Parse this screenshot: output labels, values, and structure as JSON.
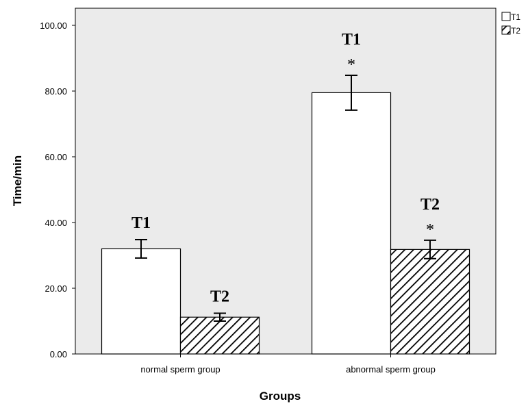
{
  "chart_data": {
    "type": "bar",
    "xlabel": "Groups",
    "ylabel": "Time/min",
    "ylim": [
      0,
      100
    ],
    "yticks": [
      "0.00",
      "20.00",
      "40.00",
      "60.00",
      "80.00",
      "100.00"
    ],
    "categories": [
      "normal sperm group",
      "abnormal sperm group"
    ],
    "series": [
      {
        "name": "T1",
        "values": [
          32.0,
          79.5
        ],
        "errors": [
          2.8,
          5.3
        ],
        "fill": "#ffffff",
        "pattern": "none"
      },
      {
        "name": "T2",
        "values": [
          11.2,
          31.8
        ],
        "errors": [
          1.2,
          2.8
        ],
        "fill": "#ffffff",
        "pattern": "diagonal-hatch"
      }
    ],
    "bar_labels": [
      {
        "series": 0,
        "category": 0,
        "text": "T1",
        "mark": ""
      },
      {
        "series": 1,
        "category": 0,
        "text": "T2",
        "mark": ""
      },
      {
        "series": 0,
        "category": 1,
        "text": "T1",
        "mark": "*"
      },
      {
        "series": 1,
        "category": 1,
        "text": "T2",
        "mark": "*"
      }
    ],
    "legend": {
      "position": "top-right",
      "entries": [
        "T1",
        "T2"
      ]
    },
    "grid": false,
    "colors": {
      "plot_background": "#ebebeb",
      "bar_stroke": "#000000",
      "hatch": "#000000"
    }
  }
}
